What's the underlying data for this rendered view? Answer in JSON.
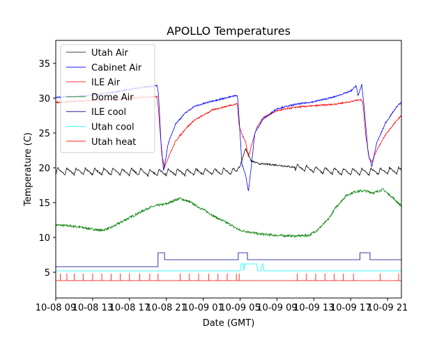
{
  "chart_data": {
    "type": "line",
    "title": "APOLLO Temperatures",
    "xlabel": "Date (GMT)",
    "ylabel": "Temperature (C)",
    "xlim": [
      0,
      37.5
    ],
    "ylim": [
      1.3,
      38.3
    ],
    "yticks": [
      5,
      10,
      15,
      20,
      25,
      30,
      35
    ],
    "xticks": [
      {
        "h": 0,
        "label": "10-08 09"
      },
      {
        "h": 4,
        "label": "10-08 13"
      },
      {
        "h": 8,
        "label": "10-08 17"
      },
      {
        "h": 12,
        "label": "10-08 21"
      },
      {
        "h": 16,
        "label": "10-09 01"
      },
      {
        "h": 20,
        "label": "10-09 05"
      },
      {
        "h": 24,
        "label": "10-09 09"
      },
      {
        "h": 28,
        "label": "10-09 13"
      },
      {
        "h": 32,
        "label": "10-09 17"
      },
      {
        "h": 36,
        "label": "10-09 21"
      }
    ],
    "legend_position": "top-left",
    "series": [
      {
        "name": "Utah Air",
        "color": "#000000",
        "style": "sawtooth",
        "base": 19.3,
        "amp": 0.9,
        "period": 1.0,
        "points": [
          [
            0,
            19.5
          ],
          [
            9.5,
            19.4
          ],
          [
            10,
            19.3
          ],
          [
            19.6,
            19.5
          ],
          [
            20.0,
            20.3
          ],
          [
            20.6,
            22.8
          ],
          [
            21.2,
            21.0
          ],
          [
            22,
            20.6
          ],
          [
            24,
            20.4
          ],
          [
            27,
            19.9
          ],
          [
            30,
            19.5
          ],
          [
            33,
            19.4
          ],
          [
            37.5,
            19.6
          ]
        ]
      },
      {
        "name": "Cabinet Air",
        "color": "#0000ff",
        "points": [
          [
            0,
            30.1
          ],
          [
            3,
            30.3
          ],
          [
            6,
            30.8
          ],
          [
            9,
            31.5
          ],
          [
            11,
            31.8
          ],
          [
            11.15,
            30.5
          ],
          [
            11.4,
            24
          ],
          [
            11.7,
            19.5
          ],
          [
            12.2,
            23.5
          ],
          [
            13,
            26.3
          ],
          [
            14,
            27.8
          ],
          [
            15,
            28.8
          ],
          [
            17,
            29.6
          ],
          [
            19,
            30.2
          ],
          [
            19.7,
            30.4
          ],
          [
            19.8,
            29
          ],
          [
            20.2,
            20.5
          ],
          [
            20.6,
            19
          ],
          [
            20.9,
            16.6
          ],
          [
            21.2,
            20
          ],
          [
            21.6,
            25
          ],
          [
            22.5,
            27
          ],
          [
            24,
            28.5
          ],
          [
            26,
            29.1
          ],
          [
            28,
            29.5
          ],
          [
            30,
            30.1
          ],
          [
            32,
            31.0
          ],
          [
            32.6,
            31.8
          ],
          [
            32.8,
            30.3
          ],
          [
            33.2,
            32.0
          ],
          [
            33.5,
            28
          ],
          [
            33.9,
            22
          ],
          [
            34.3,
            20.2
          ],
          [
            34.8,
            23.5
          ],
          [
            35.8,
            26.5
          ],
          [
            37.0,
            28.8
          ],
          [
            37.5,
            29.4
          ]
        ]
      },
      {
        "name": "ILE Air",
        "color": "#ff0000",
        "points": [
          [
            0,
            29.4
          ],
          [
            3,
            29.6
          ],
          [
            6,
            29.8
          ],
          [
            9,
            30.1
          ],
          [
            11,
            30.2
          ],
          [
            11.2,
            27.5
          ],
          [
            11.5,
            22
          ],
          [
            11.8,
            20.1
          ],
          [
            12.3,
            21.8
          ],
          [
            13,
            23.8
          ],
          [
            14,
            25.5
          ],
          [
            15,
            26.8
          ],
          [
            17,
            28.3
          ],
          [
            19,
            29.0
          ],
          [
            19.7,
            29.2
          ],
          [
            19.9,
            26
          ],
          [
            20.3,
            24.5
          ],
          [
            20.6,
            23.8
          ],
          [
            20.9,
            21.5
          ],
          [
            21.3,
            23.5
          ],
          [
            21.8,
            25.8
          ],
          [
            22.5,
            27.2
          ],
          [
            24,
            28.2
          ],
          [
            26,
            28.7
          ],
          [
            28,
            28.9
          ],
          [
            30,
            29.1
          ],
          [
            32,
            29.5
          ],
          [
            33,
            29.8
          ],
          [
            33.3,
            29.6
          ],
          [
            33.6,
            25
          ],
          [
            34.0,
            21.5
          ],
          [
            34.3,
            20.8
          ],
          [
            34.8,
            22.5
          ],
          [
            35.8,
            24.8
          ],
          [
            37.0,
            26.8
          ],
          [
            37.5,
            27.5
          ]
        ]
      },
      {
        "name": "Dome Air",
        "color": "#008000",
        "points": [
          [
            0,
            11.8
          ],
          [
            2,
            11.6
          ],
          [
            4,
            11.2
          ],
          [
            5,
            11.0
          ],
          [
            6,
            11.4
          ],
          [
            7.5,
            12.5
          ],
          [
            9,
            13.5
          ],
          [
            10,
            14.2
          ],
          [
            11,
            14.6
          ],
          [
            12,
            14.8
          ],
          [
            12.8,
            15.3
          ],
          [
            13.5,
            15.6
          ],
          [
            14.5,
            15.1
          ],
          [
            16,
            14.0
          ],
          [
            17.5,
            12.8
          ],
          [
            19,
            11.8
          ],
          [
            20,
            11.0
          ],
          [
            21,
            10.8
          ],
          [
            22,
            10.5
          ],
          [
            24,
            10.3
          ],
          [
            26,
            10.2
          ],
          [
            27.5,
            10.3
          ],
          [
            28.5,
            11.2
          ],
          [
            29.5,
            12.5
          ],
          [
            30.5,
            14.5
          ],
          [
            31.5,
            16.0
          ],
          [
            32.5,
            16.6
          ],
          [
            33.5,
            16.7
          ],
          [
            34.5,
            16.4
          ],
          [
            35.5,
            16.9
          ],
          [
            36.5,
            15.8
          ],
          [
            37.5,
            14.5
          ]
        ]
      },
      {
        "name": "ILE cool",
        "color": "#00008b",
        "points": [
          [
            0,
            5.8
          ],
          [
            11.1,
            5.8
          ],
          [
            11.1,
            7.8
          ],
          [
            11.8,
            7.8
          ],
          [
            11.8,
            6.8
          ],
          [
            19.8,
            6.8
          ],
          [
            19.8,
            7.8
          ],
          [
            20.8,
            7.8
          ],
          [
            20.8,
            6.8
          ],
          [
            33.0,
            6.8
          ],
          [
            33.0,
            7.8
          ],
          [
            34.1,
            7.8
          ],
          [
            34.1,
            6.8
          ],
          [
            37.5,
            6.8
          ]
        ]
      },
      {
        "name": "Utah cool",
        "color": "#00ffff",
        "points": [
          [
            0,
            5.2
          ],
          [
            20.0,
            5.2
          ],
          [
            20.1,
            6.2
          ],
          [
            20.4,
            6.2
          ],
          [
            20.4,
            5.2
          ],
          [
            20.5,
            6.2
          ],
          [
            21.8,
            6.2
          ],
          [
            21.9,
            5.2
          ],
          [
            22.3,
            5.2
          ],
          [
            22.4,
            6.2
          ],
          [
            22.5,
            6.2
          ],
          [
            22.6,
            5.2
          ],
          [
            37.5,
            5.2
          ]
        ]
      },
      {
        "name": "Utah heat",
        "color": "#ff0000",
        "style": "pulses",
        "base": 3.8,
        "height": 1.0,
        "pulses": [
          0.5,
          1.2,
          2.0,
          3.0,
          4.0,
          5.0,
          6.0,
          7.0,
          8.0,
          9.1,
          10.2,
          11.1,
          13.5,
          14.5,
          15.5,
          16.6,
          17.6,
          18.6,
          19.6,
          19.9,
          26.2,
          27.2,
          28.2,
          29.2,
          30.2,
          31.2,
          32.3,
          35.2,
          37.2
        ]
      }
    ]
  }
}
